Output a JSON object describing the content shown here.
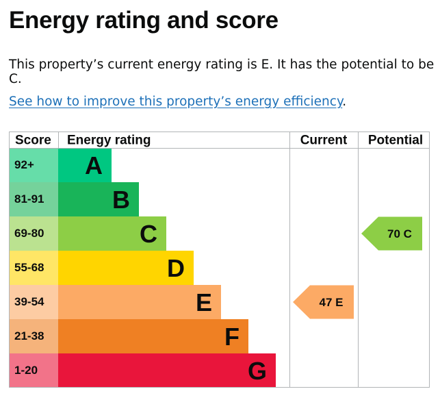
{
  "page": {
    "title": "Energy rating and score",
    "intro": "This property’s current energy rating is E. It has the potential to be C.",
    "link_text": "See how to improve this property’s energy efficiency",
    "link_suffix": "."
  },
  "chart_data": {
    "type": "bar",
    "headers": {
      "score": "Score",
      "rating": "Energy rating",
      "current": "Current",
      "potential": "Potential"
    },
    "bands": [
      {
        "score": "92+",
        "letter": "A",
        "color": "#00c781",
        "score_bg": "#66dda9"
      },
      {
        "score": "81-91",
        "letter": "B",
        "color": "#19b459",
        "score_bg": "#75d29b"
      },
      {
        "score": "69-80",
        "letter": "C",
        "color": "#8dce46",
        "score_bg": "#bbe290"
      },
      {
        "score": "55-68",
        "letter": "D",
        "color": "#ffd500",
        "score_bg": "#ffe666"
      },
      {
        "score": "39-54",
        "letter": "E",
        "color": "#fcaa65",
        "score_bg": "#fdcca3"
      },
      {
        "score": "21-38",
        "letter": "F",
        "color": "#ef8023",
        "score_bg": "#f5b37b"
      },
      {
        "score": "1-20",
        "letter": "G",
        "color": "#e9153b",
        "score_bg": "#f27389"
      }
    ],
    "current": {
      "value": 47,
      "letter": "E",
      "label": "47  E"
    },
    "potential": {
      "value": 70,
      "letter": "C",
      "label": "70  C"
    }
  }
}
